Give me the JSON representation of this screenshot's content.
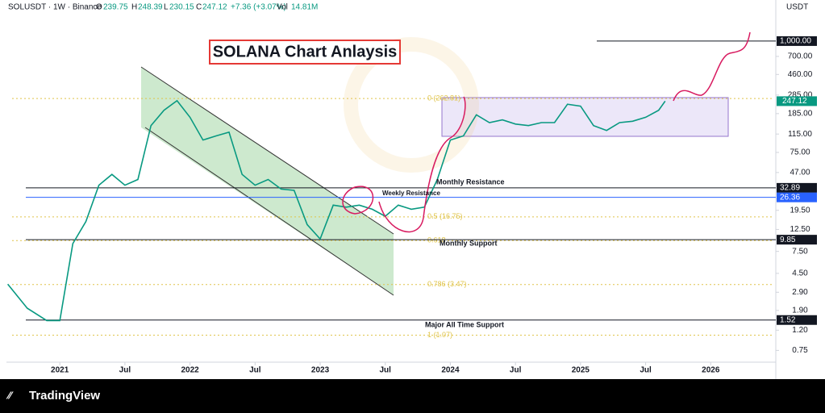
{
  "chart_data": {
    "type": "line",
    "title": "SOLANA Chart Anlaysis",
    "symbol": "SOLUSDT · 1W · Binance",
    "ohlc_labels": [
      "O",
      "H",
      "L",
      "C",
      "Vol"
    ],
    "open": 239.75,
    "high": 248.39,
    "low": 230.15,
    "close": 247.12,
    "change": "+7.36 (+3.07%)",
    "volume": "14.81M",
    "currency": "USDT",
    "footer": "TradingView",
    "log_scale": true,
    "color": "#089981",
    "x": [
      2020.6,
      2020.75,
      2020.9,
      2021.0,
      2021.1,
      2021.2,
      2021.3,
      2021.4,
      2021.5,
      2021.6,
      2021.7,
      2021.8,
      2021.9,
      2022.0,
      2022.1,
      2022.2,
      2022.3,
      2022.4,
      2022.5,
      2022.6,
      2022.7,
      2022.8,
      2022.9,
      2023.0,
      2023.1,
      2023.2,
      2023.3,
      2023.4,
      2023.5,
      2023.6,
      2023.7,
      2023.8,
      2023.9,
      2024.0,
      2024.1,
      2024.2,
      2024.3,
      2024.4,
      2024.5,
      2024.6,
      2024.7,
      2024.8,
      2024.9,
      2025.0,
      2025.1,
      2025.2,
      2025.3,
      2025.4,
      2025.5,
      2025.6,
      2025.65
    ],
    "values": [
      3.5,
      2.0,
      1.5,
      1.5,
      9,
      15,
      35,
      45,
      35,
      40,
      140,
      200,
      250,
      170,
      100,
      110,
      120,
      45,
      35,
      40,
      32,
      31,
      14,
      10,
      22,
      21,
      22,
      20,
      17,
      22,
      20,
      21,
      40,
      100,
      110,
      180,
      150,
      160,
      145,
      140,
      150,
      150,
      230,
      220,
      140,
      125,
      150,
      155,
      170,
      200,
      247.12
    ],
    "xlim": [
      2020.59,
      2026.5
    ],
    "xticks": [
      {
        "value": 2021.0,
        "label": "2021"
      },
      {
        "value": 2021.5,
        "label": "Jul"
      },
      {
        "value": 2022.0,
        "label": "2022"
      },
      {
        "value": 2022.5,
        "label": "Jul"
      },
      {
        "value": 2023.0,
        "label": "2023"
      },
      {
        "value": 2023.5,
        "label": "Jul"
      },
      {
        "value": 2024.0,
        "label": "2024"
      },
      {
        "value": 2024.5,
        "label": "Jul"
      },
      {
        "value": 2025.0,
        "label": "2025"
      },
      {
        "value": 2025.5,
        "label": "Jul"
      },
      {
        "value": 2026.0,
        "label": "2026"
      }
    ],
    "ylim": [
      0.57,
      2600
    ],
    "yticks": [
      {
        "value": 700,
        "label": "700.00"
      },
      {
        "value": 460,
        "label": "460.00"
      },
      {
        "value": 285,
        "label": "285.00"
      },
      {
        "value": 185,
        "label": "185.00"
      },
      {
        "value": 115,
        "label": "115.00"
      },
      {
        "value": 75,
        "label": "75.00"
      },
      {
        "value": 47,
        "label": "47.00"
      },
      {
        "value": 19.5,
        "label": "19.50"
      },
      {
        "value": 12.5,
        "label": "12.50"
      },
      {
        "value": 7.5,
        "label": "7.50"
      },
      {
        "value": 4.5,
        "label": "4.50"
      },
      {
        "value": 2.9,
        "label": "2.90"
      },
      {
        "value": 1.9,
        "label": "1.90"
      },
      {
        "value": 1.2,
        "label": "1.20"
      },
      {
        "value": 0.75,
        "label": "0.75"
      }
    ],
    "levels": [
      {
        "price": 1000,
        "price_label": "1,000.00",
        "color": "#131722"
      },
      {
        "price": 32.89,
        "color": "#131722"
      },
      {
        "price": 26.36,
        "color": "#2962ff"
      },
      {
        "price": 9.85,
        "color": "#131722"
      },
      {
        "price": 1.52,
        "color": "#131722"
      }
    ],
    "level_annotations": [
      "Monthly Resistance",
      "Weekly Resistance",
      "Monthly Support",
      "Major All Time Support"
    ],
    "fib": [
      {
        "value": 262.81,
        "label": "0 (262.81)"
      },
      {
        "value": 16.75,
        "label": "0.5 (16.75)"
      },
      {
        "value": 9.64,
        "label": "0.618"
      },
      {
        "value": 3.47,
        "label": "0.786 (3.47)"
      },
      {
        "value": 1.07,
        "label": "1 (1.07)"
      }
    ],
    "fib_color": "#e0c44a"
  }
}
